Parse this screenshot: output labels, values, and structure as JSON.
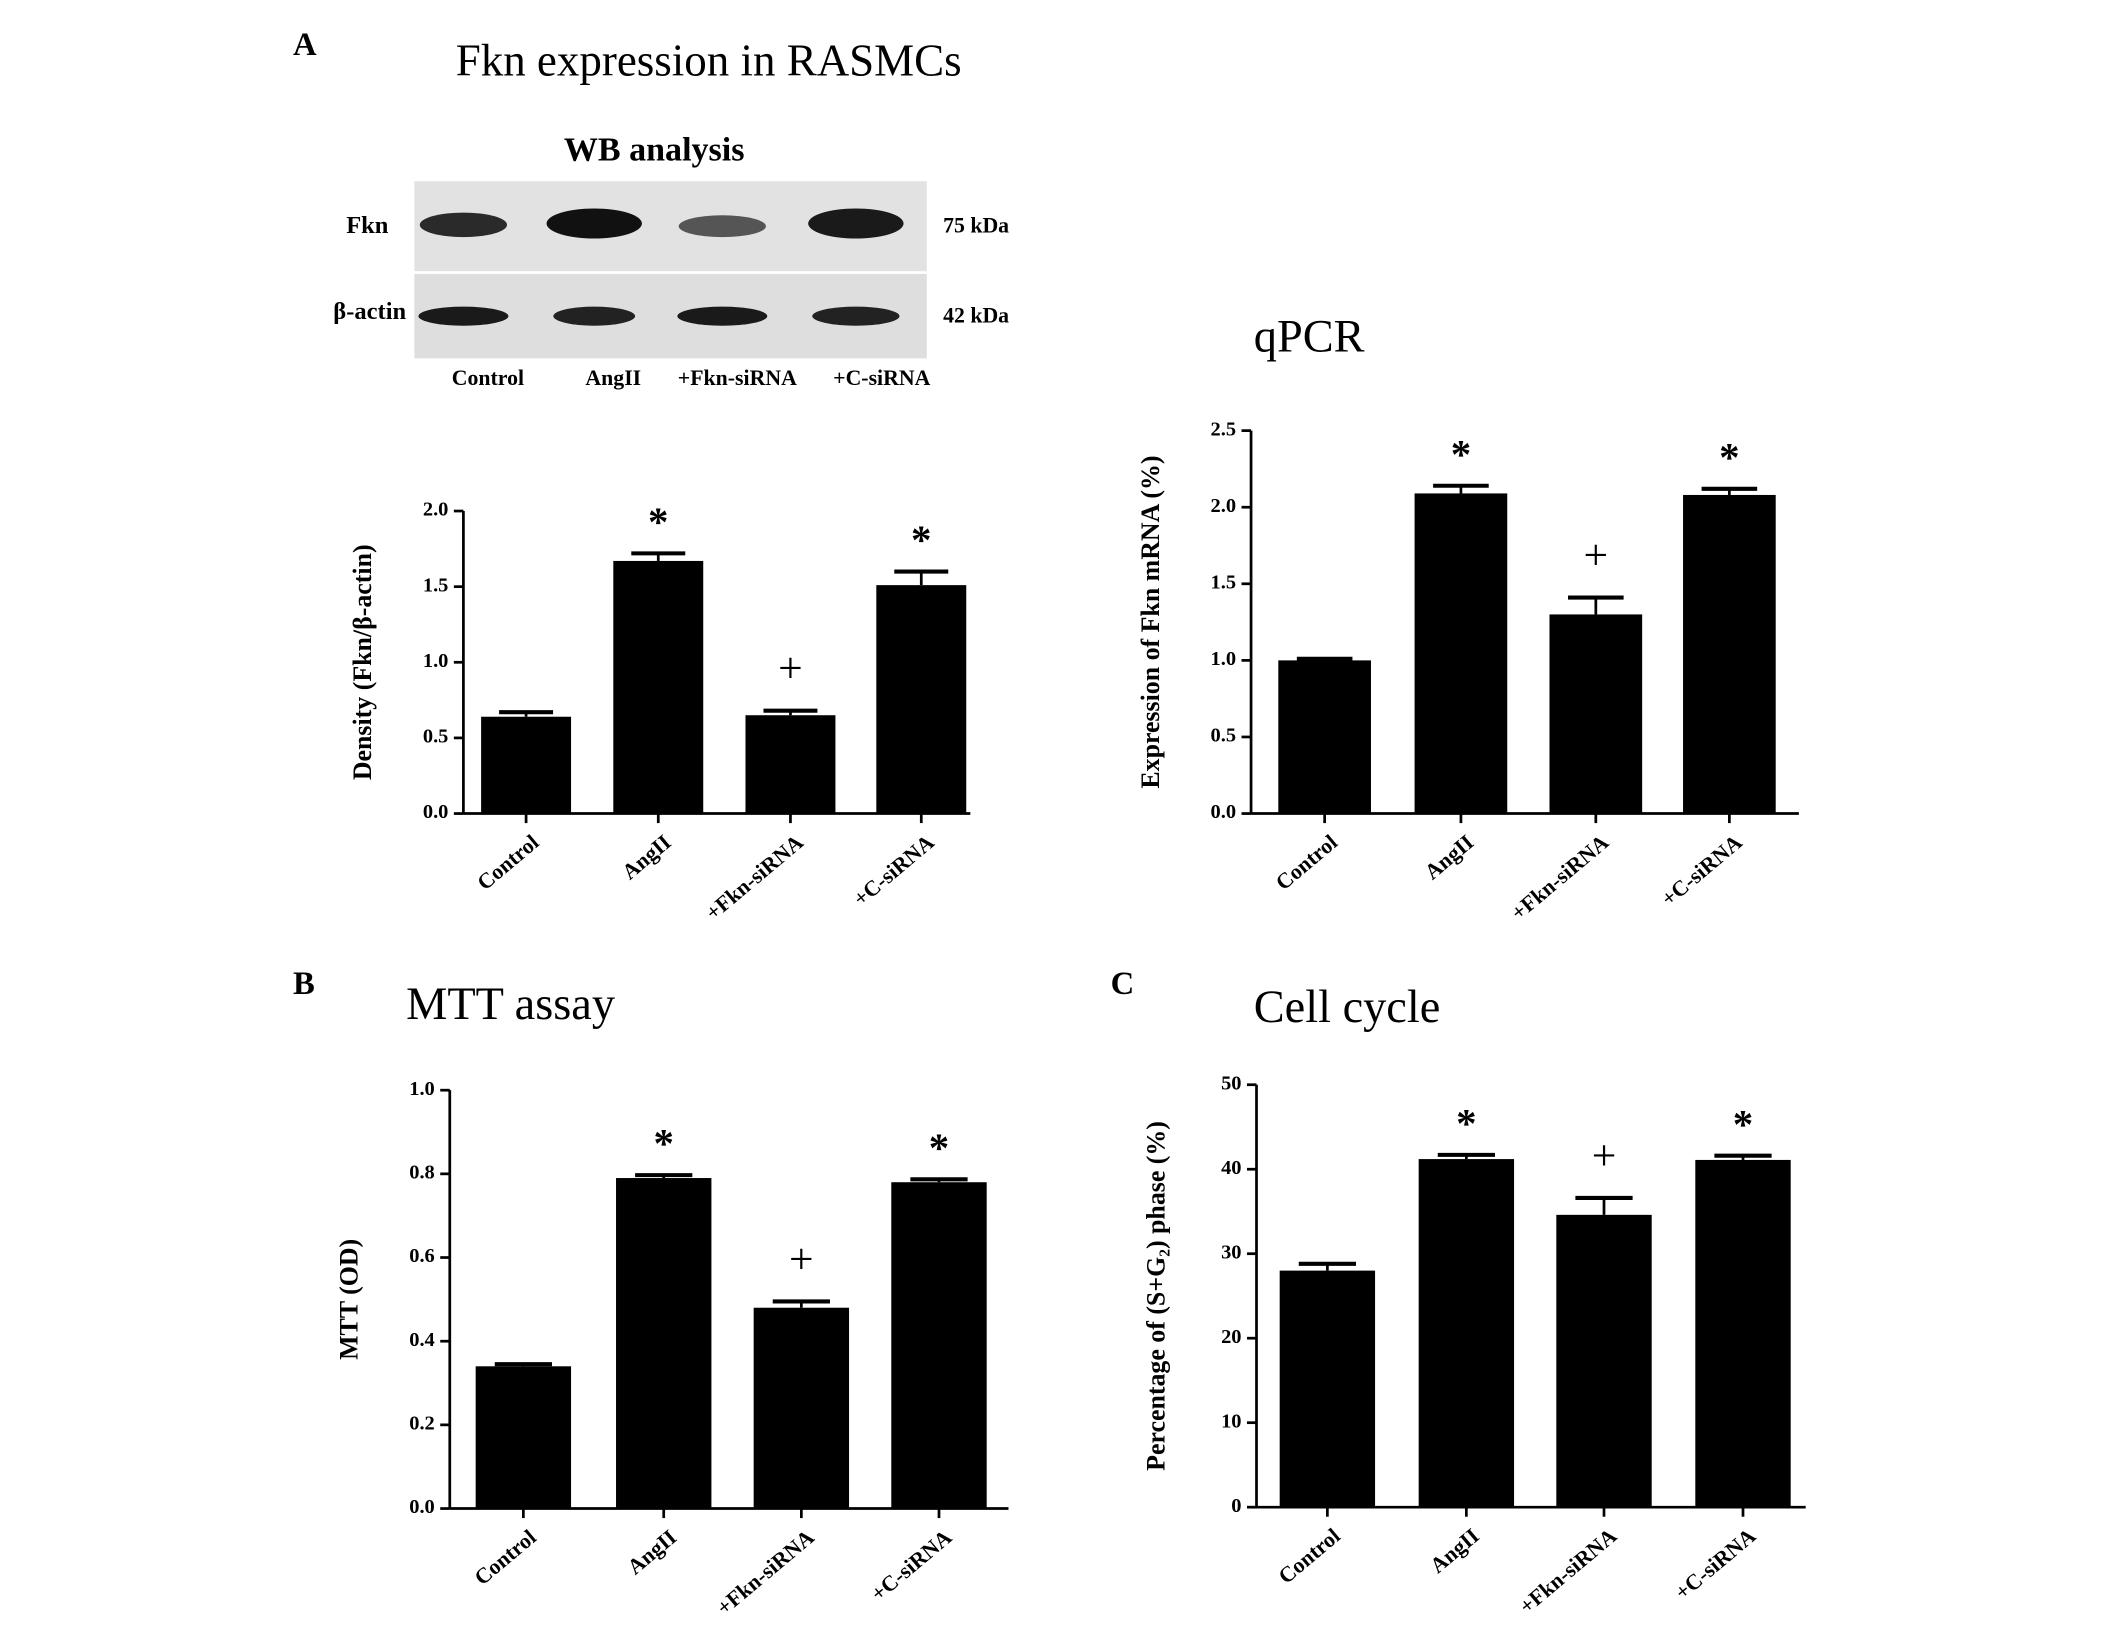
{
  "panel_a": {
    "label": "A",
    "title": "Fkn expression  in RASMCs"
  },
  "blot": {
    "title": "WB analysis",
    "rows": [
      {
        "name": "Fkn",
        "size": "75 kDa"
      },
      {
        "name": "β-actin",
        "size": "42 kDa"
      }
    ],
    "lanes": [
      "Control",
      "AngII",
      "+Fkn-siRNA",
      "+C-siRNA"
    ]
  },
  "chart_data": [
    {
      "type": "bar",
      "ylabel": "Density (Fkn/β-actin)",
      "categories": [
        "Control",
        "AngII",
        "+Fkn-siRNA",
        "+C-siRNA"
      ],
      "values": [
        0.64,
        1.67,
        0.65,
        1.51
      ],
      "errors": [
        0.03,
        0.05,
        0.03,
        0.09
      ],
      "annotations": [
        null,
        "*",
        "+",
        "*"
      ],
      "color": "#000000",
      "ylim": [
        0,
        2
      ],
      "yticks": [
        {
          "value": 0,
          "label": "0.0"
        },
        0.5,
        {
          "value": 1,
          "label": "1.0"
        },
        1.5,
        {
          "value": 2,
          "label": "2.0"
        }
      ]
    },
    {
      "type": "bar",
      "title": "qPCR",
      "ylabel": "Expression of Fkn mRNA (%)",
      "categories": [
        "Control",
        "AngII",
        "+Fkn-siRNA",
        "+C-siRNA"
      ],
      "values": [
        1.0,
        2.09,
        1.3,
        2.08
      ],
      "errors": [
        0.01,
        0.05,
        0.11,
        0.04
      ],
      "annotations": [
        null,
        "*",
        "+",
        "*"
      ],
      "color": "#000000",
      "ylim": [
        0,
        2.5
      ],
      "yticks": [
        {
          "value": 0,
          "label": "0.0"
        },
        0.5,
        {
          "value": 1,
          "label": "1.0"
        },
        1.5,
        {
          "value": 2,
          "label": "2.0"
        },
        2.5
      ]
    },
    {
      "type": "bar",
      "panel": "B",
      "title": "MTT assay",
      "ylabel": "MTT (OD)",
      "categories": [
        "Control",
        "AngII",
        "+Fkn-siRNA",
        "+C-siRNA"
      ],
      "values": [
        0.34,
        0.79,
        0.48,
        0.78
      ],
      "errors": [
        0.005,
        0.007,
        0.015,
        0.007
      ],
      "annotations": [
        null,
        "*",
        "+",
        "*"
      ],
      "color": "#000000",
      "ylim": [
        0,
        1
      ],
      "yticks": [
        {
          "value": 0,
          "label": "0.0"
        },
        0.2,
        0.4,
        0.6,
        0.8,
        {
          "value": 1,
          "label": "1.0"
        }
      ]
    },
    {
      "type": "bar",
      "panel": "C",
      "title": "Cell cycle",
      "ylabel": "Percentage of (S+G₂) phase (%)",
      "categories": [
        "Control",
        "AngII",
        "+Fkn-siRNA",
        "+C-siRNA"
      ],
      "values": [
        28,
        41.2,
        34.6,
        41.1
      ],
      "errors": [
        0.8,
        0.5,
        2.0,
        0.5
      ],
      "annotations": [
        null,
        "*",
        "+",
        "*"
      ],
      "color": "#000000",
      "ylim": [
        0,
        50
      ],
      "yticks": [
        0,
        10,
        20,
        30,
        40,
        50
      ]
    }
  ]
}
